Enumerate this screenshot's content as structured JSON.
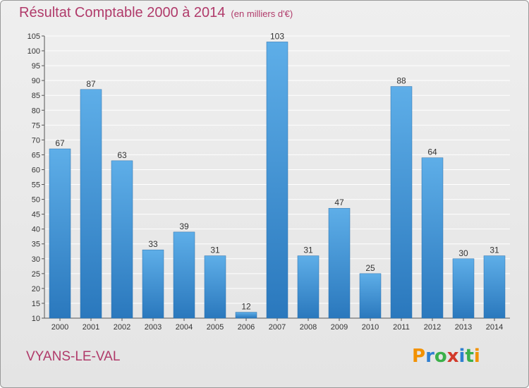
{
  "header": {
    "title": "Résultat Comptable 2000 à 2014",
    "subtitle": "(en milliers d'€)"
  },
  "footer": {
    "commune": "VYANS-LE-VAL",
    "logo_text": "Proxiti"
  },
  "colors": {
    "bar_light": "#5eaee8",
    "bar_dark": "#2a78bd",
    "title": "#b03a6a",
    "grid": "#ffffff"
  },
  "chart_data": {
    "type": "bar",
    "title": "Résultat Comptable 2000 à 2014",
    "subtitle": "(en milliers d'€)",
    "categories": [
      "2000",
      "2001",
      "2002",
      "2003",
      "2004",
      "2005",
      "2006",
      "2007",
      "2008",
      "2009",
      "2010",
      "2011",
      "2012",
      "2013",
      "2014"
    ],
    "values": [
      67,
      87,
      63,
      33,
      39,
      31,
      12,
      103,
      31,
      47,
      25,
      88,
      64,
      30,
      31
    ],
    "ylim": [
      10,
      105
    ],
    "yticks": [
      10,
      15,
      20,
      25,
      30,
      35,
      40,
      45,
      50,
      55,
      60,
      65,
      70,
      75,
      80,
      85,
      90,
      95,
      100,
      105
    ],
    "grid": true,
    "legend": "none"
  }
}
